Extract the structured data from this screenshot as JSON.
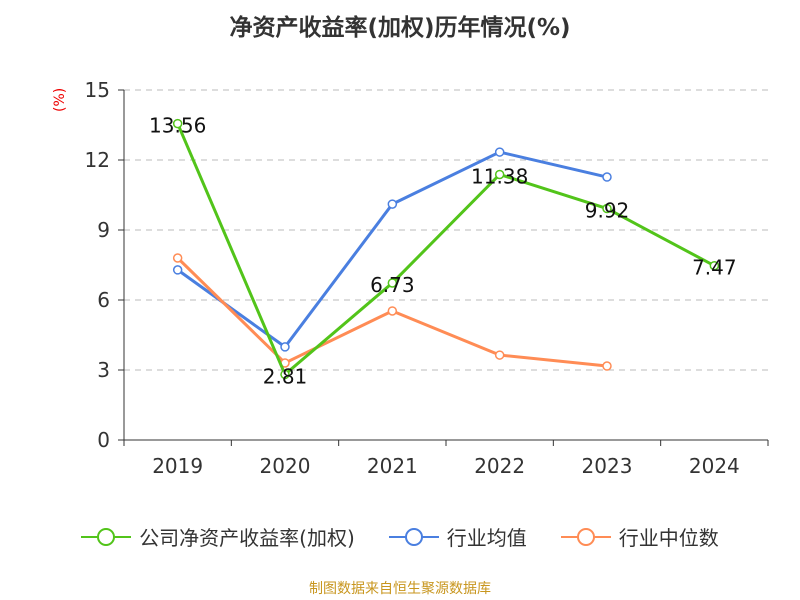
{
  "chart_data": {
    "type": "line",
    "title": "净资产收益率(加权)历年情况(%)",
    "ylabel": "(%)",
    "categories": [
      "2019",
      "2020",
      "2021",
      "2022",
      "2023",
      "2024"
    ],
    "ylim": [
      0,
      15
    ],
    "yticks": [
      0,
      3,
      6,
      9,
      12,
      15
    ],
    "grid": true,
    "legend_position": "bottom",
    "series": [
      {
        "name": "公司净资产收益率(加权)",
        "color": "#52c41a",
        "values": [
          13.56,
          2.81,
          6.73,
          11.38,
          9.92,
          7.47
        ],
        "labels": [
          "13.56",
          "2.81",
          "6.73",
          "11.38",
          "9.92",
          "7.47"
        ]
      },
      {
        "name": "行业均值",
        "color": "#4a7fe0",
        "values": [
          7.29,
          3.99,
          10.11,
          12.34,
          11.27,
          null
        ]
      },
      {
        "name": "行业中位数",
        "color": "#ff8c55",
        "values": [
          7.8,
          3.3,
          5.53,
          3.64,
          3.17,
          null
        ]
      }
    ]
  },
  "source": "制图数据来自恒生聚源数据库"
}
